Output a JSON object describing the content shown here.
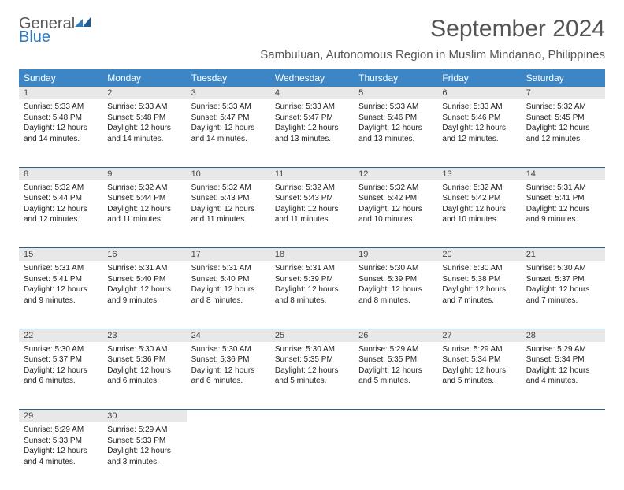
{
  "logo": {
    "general": "General",
    "blue": "Blue"
  },
  "title": "September 2024",
  "subtitle": "Sambuluan, Autonomous Region in Muslim Mindanao, Philippines",
  "colors": {
    "header_bg": "#3d86c6",
    "header_text": "#ffffff",
    "daynum_bg": "#e8e8e8",
    "border": "#2d5f8e",
    "logo_gray": "#5a5a5a",
    "logo_blue": "#2f7bbf"
  },
  "day_headers": [
    "Sunday",
    "Monday",
    "Tuesday",
    "Wednesday",
    "Thursday",
    "Friday",
    "Saturday"
  ],
  "weeks": [
    {
      "nums": [
        "1",
        "2",
        "3",
        "4",
        "5",
        "6",
        "7"
      ],
      "cells": [
        {
          "sunrise": "Sunrise: 5:33 AM",
          "sunset": "Sunset: 5:48 PM",
          "day1": "Daylight: 12 hours",
          "day2": "and 14 minutes."
        },
        {
          "sunrise": "Sunrise: 5:33 AM",
          "sunset": "Sunset: 5:48 PM",
          "day1": "Daylight: 12 hours",
          "day2": "and 14 minutes."
        },
        {
          "sunrise": "Sunrise: 5:33 AM",
          "sunset": "Sunset: 5:47 PM",
          "day1": "Daylight: 12 hours",
          "day2": "and 14 minutes."
        },
        {
          "sunrise": "Sunrise: 5:33 AM",
          "sunset": "Sunset: 5:47 PM",
          "day1": "Daylight: 12 hours",
          "day2": "and 13 minutes."
        },
        {
          "sunrise": "Sunrise: 5:33 AM",
          "sunset": "Sunset: 5:46 PM",
          "day1": "Daylight: 12 hours",
          "day2": "and 13 minutes."
        },
        {
          "sunrise": "Sunrise: 5:33 AM",
          "sunset": "Sunset: 5:46 PM",
          "day1": "Daylight: 12 hours",
          "day2": "and 12 minutes."
        },
        {
          "sunrise": "Sunrise: 5:32 AM",
          "sunset": "Sunset: 5:45 PM",
          "day1": "Daylight: 12 hours",
          "day2": "and 12 minutes."
        }
      ]
    },
    {
      "nums": [
        "8",
        "9",
        "10",
        "11",
        "12",
        "13",
        "14"
      ],
      "cells": [
        {
          "sunrise": "Sunrise: 5:32 AM",
          "sunset": "Sunset: 5:44 PM",
          "day1": "Daylight: 12 hours",
          "day2": "and 12 minutes."
        },
        {
          "sunrise": "Sunrise: 5:32 AM",
          "sunset": "Sunset: 5:44 PM",
          "day1": "Daylight: 12 hours",
          "day2": "and 11 minutes."
        },
        {
          "sunrise": "Sunrise: 5:32 AM",
          "sunset": "Sunset: 5:43 PM",
          "day1": "Daylight: 12 hours",
          "day2": "and 11 minutes."
        },
        {
          "sunrise": "Sunrise: 5:32 AM",
          "sunset": "Sunset: 5:43 PM",
          "day1": "Daylight: 12 hours",
          "day2": "and 11 minutes."
        },
        {
          "sunrise": "Sunrise: 5:32 AM",
          "sunset": "Sunset: 5:42 PM",
          "day1": "Daylight: 12 hours",
          "day2": "and 10 minutes."
        },
        {
          "sunrise": "Sunrise: 5:32 AM",
          "sunset": "Sunset: 5:42 PM",
          "day1": "Daylight: 12 hours",
          "day2": "and 10 minutes."
        },
        {
          "sunrise": "Sunrise: 5:31 AM",
          "sunset": "Sunset: 5:41 PM",
          "day1": "Daylight: 12 hours",
          "day2": "and 9 minutes."
        }
      ]
    },
    {
      "nums": [
        "15",
        "16",
        "17",
        "18",
        "19",
        "20",
        "21"
      ],
      "cells": [
        {
          "sunrise": "Sunrise: 5:31 AM",
          "sunset": "Sunset: 5:41 PM",
          "day1": "Daylight: 12 hours",
          "day2": "and 9 minutes."
        },
        {
          "sunrise": "Sunrise: 5:31 AM",
          "sunset": "Sunset: 5:40 PM",
          "day1": "Daylight: 12 hours",
          "day2": "and 9 minutes."
        },
        {
          "sunrise": "Sunrise: 5:31 AM",
          "sunset": "Sunset: 5:40 PM",
          "day1": "Daylight: 12 hours",
          "day2": "and 8 minutes."
        },
        {
          "sunrise": "Sunrise: 5:31 AM",
          "sunset": "Sunset: 5:39 PM",
          "day1": "Daylight: 12 hours",
          "day2": "and 8 minutes."
        },
        {
          "sunrise": "Sunrise: 5:30 AM",
          "sunset": "Sunset: 5:39 PM",
          "day1": "Daylight: 12 hours",
          "day2": "and 8 minutes."
        },
        {
          "sunrise": "Sunrise: 5:30 AM",
          "sunset": "Sunset: 5:38 PM",
          "day1": "Daylight: 12 hours",
          "day2": "and 7 minutes."
        },
        {
          "sunrise": "Sunrise: 5:30 AM",
          "sunset": "Sunset: 5:37 PM",
          "day1": "Daylight: 12 hours",
          "day2": "and 7 minutes."
        }
      ]
    },
    {
      "nums": [
        "22",
        "23",
        "24",
        "25",
        "26",
        "27",
        "28"
      ],
      "cells": [
        {
          "sunrise": "Sunrise: 5:30 AM",
          "sunset": "Sunset: 5:37 PM",
          "day1": "Daylight: 12 hours",
          "day2": "and 6 minutes."
        },
        {
          "sunrise": "Sunrise: 5:30 AM",
          "sunset": "Sunset: 5:36 PM",
          "day1": "Daylight: 12 hours",
          "day2": "and 6 minutes."
        },
        {
          "sunrise": "Sunrise: 5:30 AM",
          "sunset": "Sunset: 5:36 PM",
          "day1": "Daylight: 12 hours",
          "day2": "and 6 minutes."
        },
        {
          "sunrise": "Sunrise: 5:30 AM",
          "sunset": "Sunset: 5:35 PM",
          "day1": "Daylight: 12 hours",
          "day2": "and 5 minutes."
        },
        {
          "sunrise": "Sunrise: 5:29 AM",
          "sunset": "Sunset: 5:35 PM",
          "day1": "Daylight: 12 hours",
          "day2": "and 5 minutes."
        },
        {
          "sunrise": "Sunrise: 5:29 AM",
          "sunset": "Sunset: 5:34 PM",
          "day1": "Daylight: 12 hours",
          "day2": "and 5 minutes."
        },
        {
          "sunrise": "Sunrise: 5:29 AM",
          "sunset": "Sunset: 5:34 PM",
          "day1": "Daylight: 12 hours",
          "day2": "and 4 minutes."
        }
      ]
    },
    {
      "nums": [
        "29",
        "30",
        "",
        "",
        "",
        "",
        ""
      ],
      "cells": [
        {
          "sunrise": "Sunrise: 5:29 AM",
          "sunset": "Sunset: 5:33 PM",
          "day1": "Daylight: 12 hours",
          "day2": "and 4 minutes."
        },
        {
          "sunrise": "Sunrise: 5:29 AM",
          "sunset": "Sunset: 5:33 PM",
          "day1": "Daylight: 12 hours",
          "day2": "and 3 minutes."
        },
        null,
        null,
        null,
        null,
        null
      ]
    }
  ]
}
